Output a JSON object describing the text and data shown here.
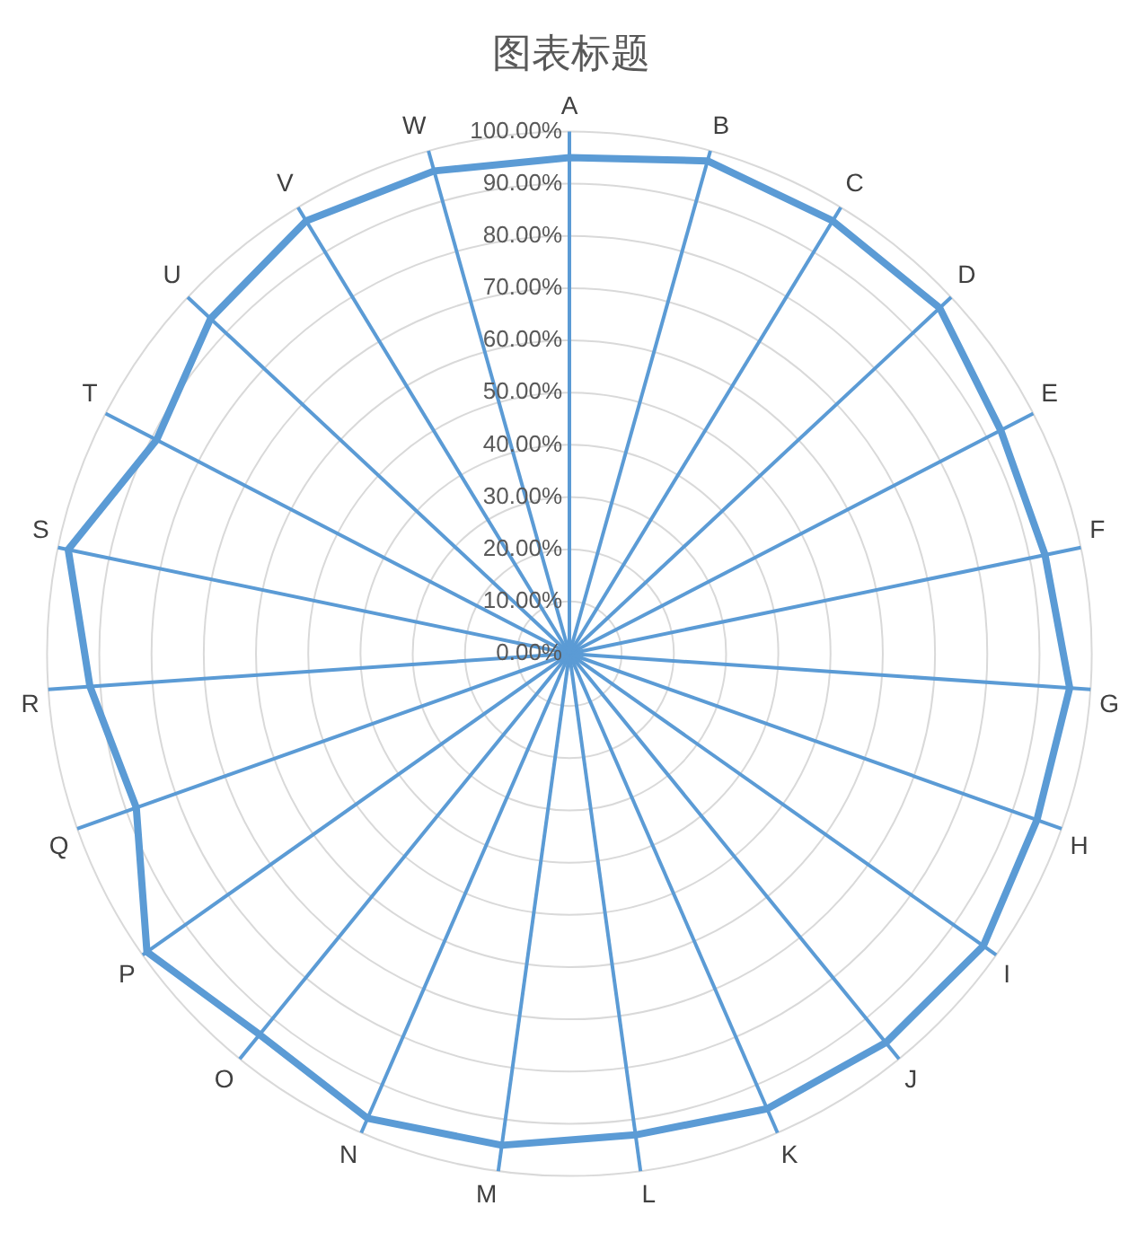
{
  "chart_data": {
    "type": "radar",
    "title": "图表标题",
    "categories": [
      "A",
      "B",
      "C",
      "D",
      "E",
      "F",
      "G",
      "H",
      "I",
      "J",
      "K",
      "L",
      "M",
      "N",
      "O",
      "P",
      "Q",
      "R",
      "S",
      "T",
      "U",
      "V",
      "W"
    ],
    "series": [
      {
        "color": "#5b9bd5",
        "values": [
          0.95,
          0.98,
          0.97,
          0.97,
          0.93,
          0.93,
          0.96,
          0.95,
          0.97,
          0.96,
          0.95,
          0.93,
          0.95,
          0.97,
          0.94,
          0.99,
          0.88,
          0.92,
          0.98,
          0.89,
          0.94,
          0.97,
          0.96
        ]
      }
    ],
    "ylim": [
      0,
      1
    ],
    "yticks": [
      {
        "value": 0,
        "label": "0.00%"
      },
      {
        "value": 0.1,
        "label": "10.00%"
      },
      {
        "value": 0.2,
        "label": "20.00%"
      },
      {
        "value": 0.3,
        "label": "30.00%"
      },
      {
        "value": 0.4,
        "label": "40.00%"
      },
      {
        "value": 0.5,
        "label": "50.00%"
      },
      {
        "value": 0.6,
        "label": "60.00%"
      },
      {
        "value": 0.7,
        "label": "70.00%"
      },
      {
        "value": 0.8,
        "label": "80.00%"
      },
      {
        "value": 0.9,
        "label": "90.00%"
      },
      {
        "value": 1,
        "label": "100.00%"
      }
    ],
    "grid": true,
    "legend": false,
    "marker": "none",
    "line_style": "solid"
  }
}
